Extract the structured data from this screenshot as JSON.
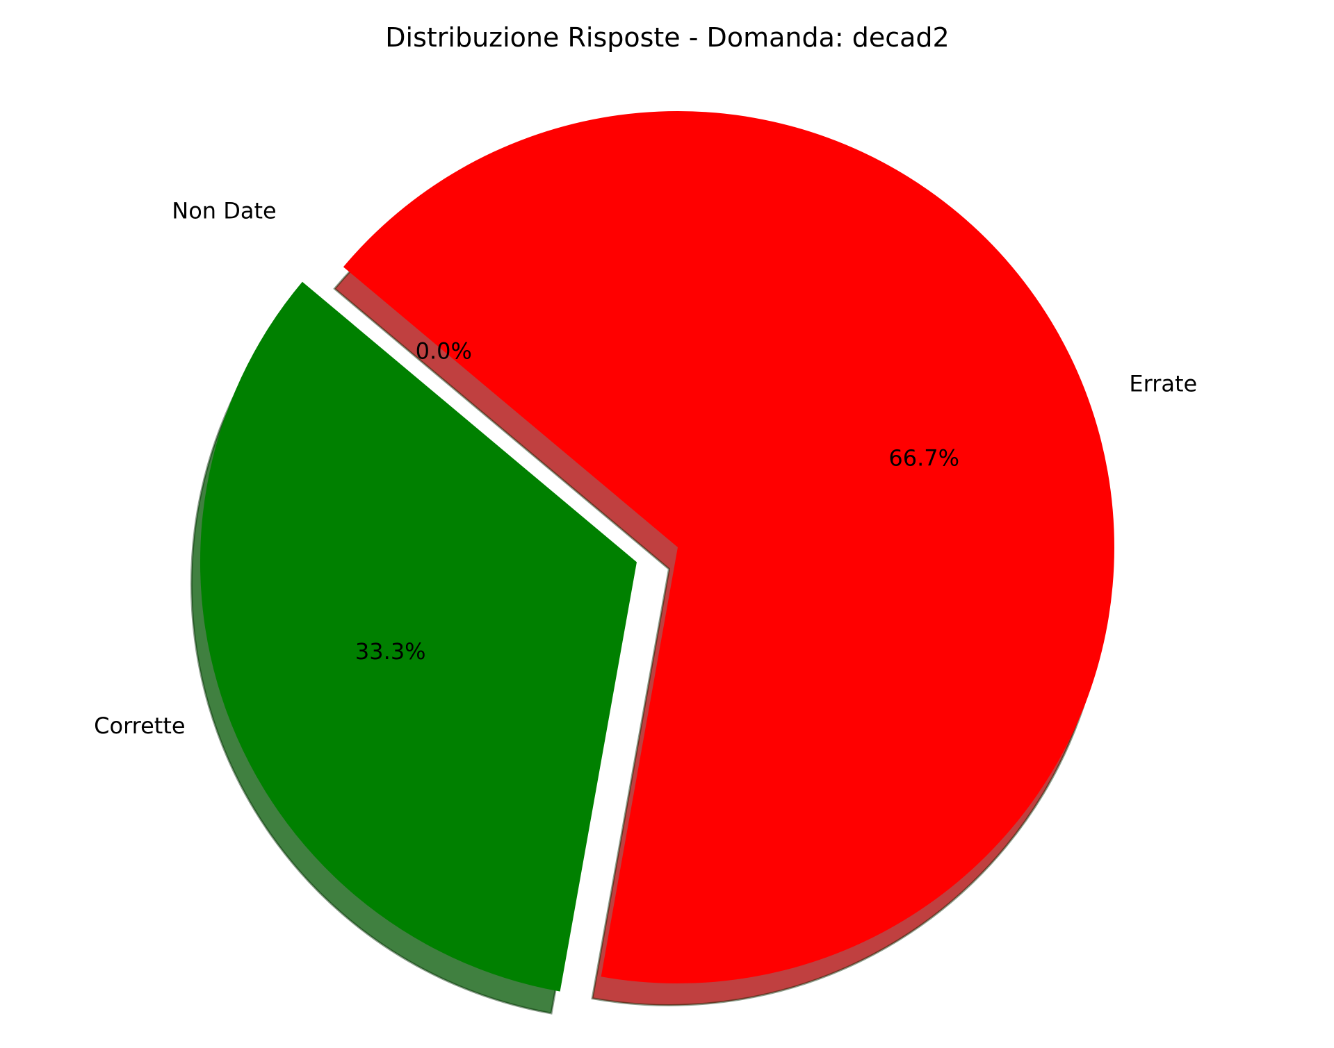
{
  "chart_data": {
    "type": "pie",
    "title": "Distribuzione Risposte - Domanda: decad2",
    "slices": [
      {
        "label": "Corrette",
        "pct_label": "33.3%",
        "value": 33.3,
        "color": "#008000"
      },
      {
        "label": "Errate",
        "pct_label": "66.7%",
        "value": 66.7,
        "color": "#ff0000"
      },
      {
        "label": "Non Date",
        "pct_label": "0.0%",
        "value": 0.0,
        "color": "#808080"
      }
    ]
  }
}
